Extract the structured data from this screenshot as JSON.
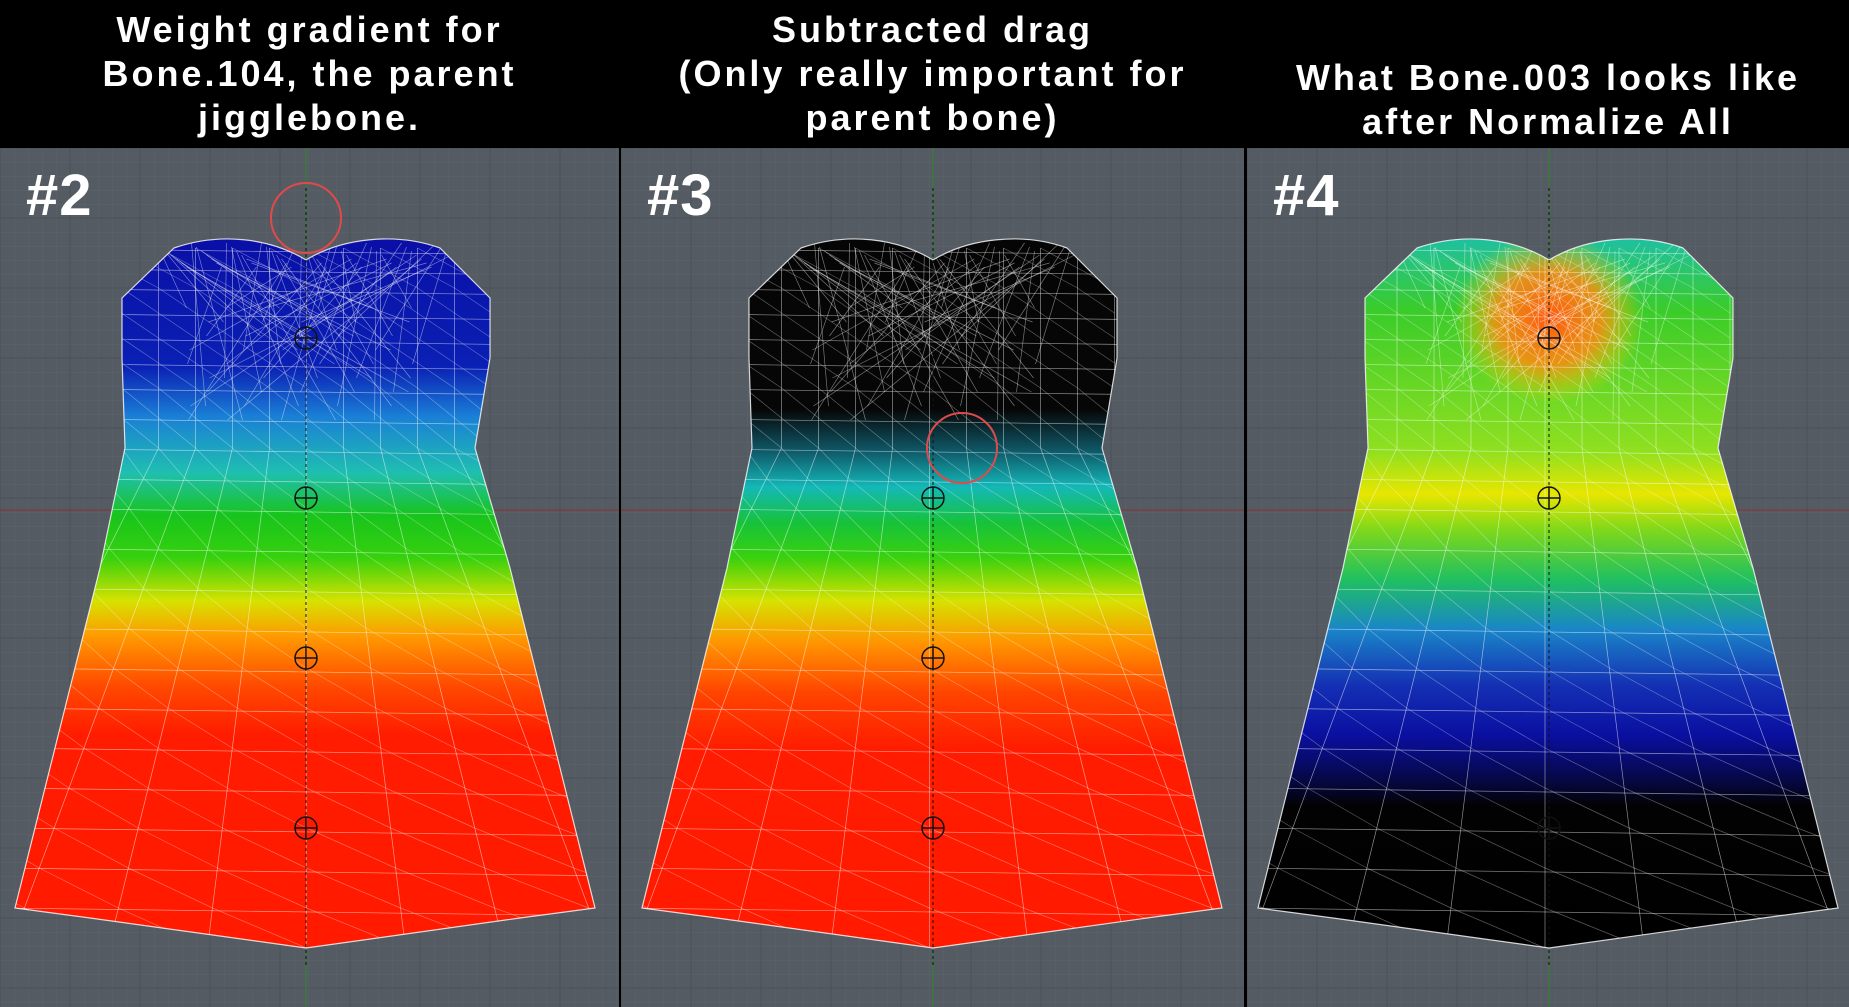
{
  "panels": [
    {
      "number": "#2",
      "caption": [
        "Weight gradient for",
        "Bone.104, the parent",
        "jigglebone."
      ],
      "gradient": [
        {
          "offset": 0.0,
          "color": "#0a0fa6"
        },
        {
          "offset": 0.18,
          "color": "#0a20b4"
        },
        {
          "offset": 0.25,
          "color": "#1a7fd6"
        },
        {
          "offset": 0.33,
          "color": "#1fbfb0"
        },
        {
          "offset": 0.39,
          "color": "#18c41c"
        },
        {
          "offset": 0.45,
          "color": "#37d10e"
        },
        {
          "offset": 0.51,
          "color": "#d6e200"
        },
        {
          "offset": 0.56,
          "color": "#ff9a00"
        },
        {
          "offset": 0.63,
          "color": "#ff4a00"
        },
        {
          "offset": 0.7,
          "color": "#ff1c00"
        },
        {
          "offset": 1.0,
          "color": "#ff1a00"
        }
      ]
    },
    {
      "number": "#3",
      "caption": [
        "Subtracted drag",
        "(Only really important for",
        "parent bone)"
      ],
      "gradient": [
        {
          "offset": 0.0,
          "color": "#050505"
        },
        {
          "offset": 0.24,
          "color": "#060606"
        },
        {
          "offset": 0.3,
          "color": "#0f5a6a"
        },
        {
          "offset": 0.35,
          "color": "#14b8b8"
        },
        {
          "offset": 0.4,
          "color": "#16c23a"
        },
        {
          "offset": 0.45,
          "color": "#3ad10e"
        },
        {
          "offset": 0.51,
          "color": "#d6e200"
        },
        {
          "offset": 0.57,
          "color": "#ff9400"
        },
        {
          "offset": 0.64,
          "color": "#ff4400"
        },
        {
          "offset": 0.72,
          "color": "#ff1c00"
        },
        {
          "offset": 1.0,
          "color": "#ff1a00"
        }
      ]
    },
    {
      "number": "#4",
      "caption": [
        "What Bone.003 looks like",
        "after Normalize All"
      ],
      "gradient": [
        {
          "offset": 0.0,
          "color": "#1ec0a0"
        },
        {
          "offset": 0.1,
          "color": "#3acc2a"
        },
        {
          "offset": 0.3,
          "color": "#90e020"
        },
        {
          "offset": 0.36,
          "color": "#e8e600"
        },
        {
          "offset": 0.41,
          "color": "#7fd81a"
        },
        {
          "offset": 0.48,
          "color": "#20c060"
        },
        {
          "offset": 0.55,
          "color": "#1a86c8"
        },
        {
          "offset": 0.63,
          "color": "#1430b4"
        },
        {
          "offset": 0.7,
          "color": "#0a0fa0"
        },
        {
          "offset": 0.77,
          "color": "#05073a"
        },
        {
          "offset": 0.8,
          "color": "#020202"
        },
        {
          "offset": 1.0,
          "color": "#000000"
        }
      ]
    }
  ],
  "colors": {
    "viewport_bg": "#555b63",
    "grid_minor": "#5d636b",
    "grid_major": "#4a5058",
    "wire": "#ffffff",
    "bone_selection_ring": "#e04a4a",
    "axis_y": "#2a8a2a",
    "axis_x": "#8a3030",
    "divider": "#000000"
  },
  "icons": [
    "bone-joint-icon",
    "bone-selection-ring-icon"
  ]
}
